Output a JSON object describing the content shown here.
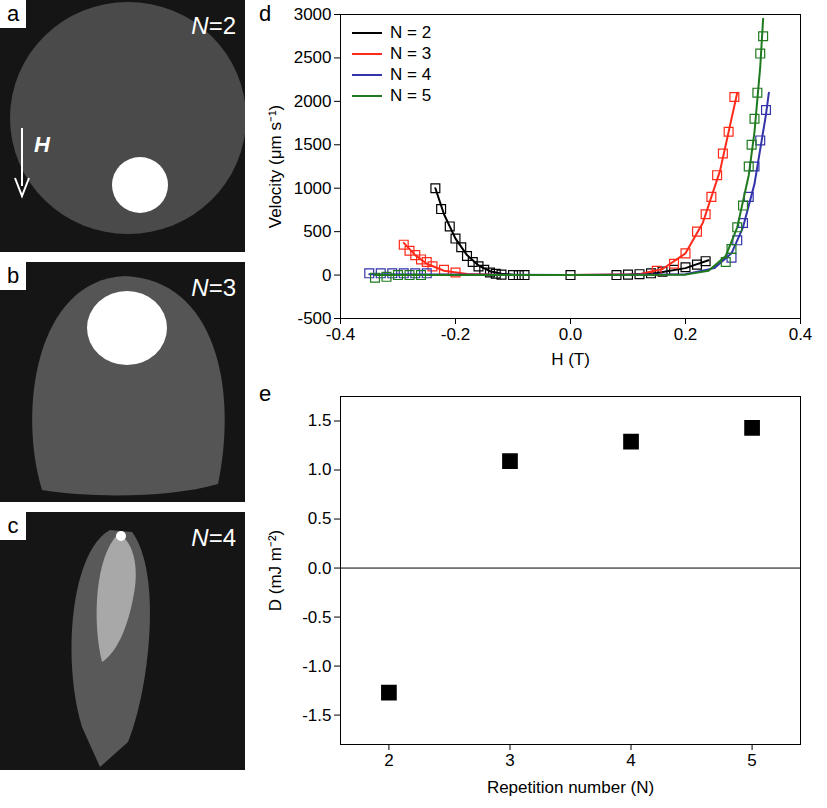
{
  "images": [
    {
      "letter": "a",
      "label": "N=2",
      "field_label": "H"
    },
    {
      "letter": "b",
      "label": "N=3"
    },
    {
      "letter": "c",
      "label": "N=4"
    }
  ],
  "chart_data": [
    {
      "letter": "d",
      "type": "scatter",
      "x_label": "H (T)",
      "y_label": "Velocity (μm s⁻¹)",
      "xlim": [
        -0.4,
        0.4
      ],
      "xticks": [
        -0.4,
        -0.2,
        {
          "value": 0,
          "label": "0.0"
        },
        0.2,
        0.4
      ],
      "ylim": [
        -500,
        3000
      ],
      "yticks": [
        -500,
        0,
        500,
        1000,
        1500,
        2000,
        2500,
        3000
      ],
      "legend": "top-left",
      "series": [
        {
          "name": "N = 2",
          "color": "#000000",
          "marker": "square",
          "line_style": "solid",
          "x": [
            -0.235,
            -0.225,
            -0.21,
            -0.2,
            -0.19,
            -0.18,
            -0.17,
            -0.16,
            -0.15,
            -0.14,
            -0.13,
            -0.12,
            -0.1,
            -0.09,
            -0.08,
            0,
            0.08,
            0.1,
            0.12,
            0.14,
            0.16,
            0.18,
            0.2,
            0.22,
            0.235
          ],
          "values": [
            1000,
            760,
            560,
            420,
            320,
            220,
            150,
            100,
            60,
            30,
            15,
            5,
            0,
            0,
            0,
            0,
            0,
            5,
            10,
            20,
            40,
            60,
            90,
            120,
            160
          ],
          "fit_x": [
            -0.235,
            -0.22,
            -0.2,
            -0.18,
            -0.16,
            -0.14,
            -0.12,
            -0.1,
            0,
            0.1,
            0.15,
            0.2,
            0.24
          ],
          "fit_values": [
            1000,
            700,
            420,
            230,
            110,
            45,
            15,
            3,
            0,
            3,
            25,
            80,
            170
          ]
        },
        {
          "name": "N = 3",
          "color": "#ff2a1a",
          "marker": "square",
          "line_style": "solid",
          "x": [
            -0.29,
            -0.28,
            -0.27,
            -0.26,
            -0.25,
            -0.24,
            -0.22,
            -0.2,
            0.15,
            0.18,
            0.2,
            0.22,
            0.235,
            0.245,
            0.255,
            0.265,
            0.275,
            0.285
          ],
          "values": [
            350,
            280,
            230,
            180,
            150,
            100,
            60,
            30,
            50,
            130,
            250,
            500,
            700,
            900,
            1150,
            1400,
            1650,
            2050
          ],
          "fit_x": [
            -0.29,
            -0.27,
            -0.25,
            -0.22,
            -0.18,
            -0.12,
            0,
            0.12,
            0.16,
            0.2,
            0.23,
            0.26,
            0.29
          ],
          "fit_values": [
            370,
            230,
            130,
            50,
            12,
            2,
            0,
            10,
            70,
            250,
            600,
            1200,
            2100
          ]
        },
        {
          "name": "N = 4",
          "color": "#3333aa",
          "marker": "square",
          "line_style": "solid",
          "x": [
            -0.35,
            -0.33,
            -0.31,
            -0.29,
            -0.27,
            -0.25,
            0.28,
            0.29,
            0.3,
            0.31,
            0.32,
            0.33,
            0.34
          ],
          "values": [
            20,
            20,
            20,
            20,
            20,
            20,
            200,
            400,
            600,
            900,
            1250,
            1550,
            1900
          ],
          "fit_x": [
            -0.35,
            0,
            0.2,
            0.25,
            0.28,
            0.3,
            0.32,
            0.34,
            0.345
          ],
          "fit_values": [
            10,
            0,
            10,
            80,
            250,
            550,
            1050,
            1850,
            2100
          ]
        },
        {
          "name": "N = 5",
          "color": "#1f7a1f",
          "marker": "square",
          "line_style": "solid",
          "x": [
            -0.34,
            -0.32,
            -0.3,
            -0.28,
            -0.26,
            0.27,
            0.28,
            0.29,
            0.3,
            0.31,
            0.315,
            0.32,
            0.325,
            0.33,
            0.335
          ],
          "values": [
            -30,
            -20,
            0,
            0,
            0,
            150,
            300,
            550,
            800,
            1250,
            1500,
            1800,
            2100,
            2550,
            2750
          ],
          "fit_x": [
            -0.34,
            0,
            0.2,
            0.24,
            0.27,
            0.29,
            0.31,
            0.32,
            0.33,
            0.335
          ],
          "fit_values": [
            0,
            0,
            5,
            50,
            220,
            550,
            1150,
            1650,
            2400,
            2950
          ]
        }
      ]
    },
    {
      "letter": "e",
      "type": "scatter",
      "x_label": "Repetition number (N)",
      "y_label": "D (mJ m⁻²)",
      "xlim": [
        1.6,
        5.4
      ],
      "xticks": [
        2,
        3,
        4,
        5
      ],
      "ylim": [
        -1.8,
        1.75
      ],
      "yticks": [
        {
          "value": -1.5,
          "label": "-1.5"
        },
        {
          "value": -1,
          "label": "-1.0"
        },
        {
          "value": -0.5,
          "label": "-0.5"
        },
        {
          "value": 0,
          "label": "0.0"
        },
        {
          "value": 0.5,
          "label": "0.5"
        },
        {
          "value": 1,
          "label": "1.0"
        },
        {
          "value": 1.5,
          "label": "1.5"
        }
      ],
      "x": [
        2,
        3,
        4,
        5
      ],
      "values": [
        -1.27,
        1.09,
        1.29,
        1.43
      ],
      "color": "#000000",
      "marker": "square",
      "hlines": [
        0
      ]
    }
  ]
}
